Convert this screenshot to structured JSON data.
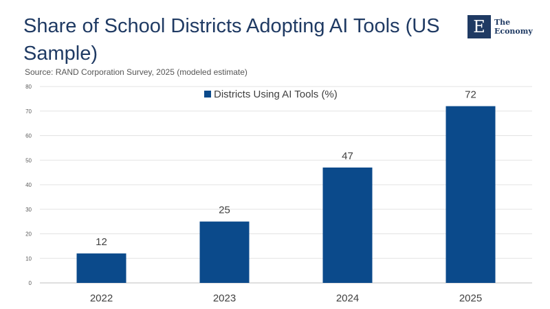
{
  "header": {
    "title": "Share of School Districts Adopting AI Tools (US Sample)",
    "subtitle": "Source: RAND Corporation Survey, 2025 (modeled estimate)"
  },
  "logo": {
    "mark": "E",
    "line1": "The",
    "line2": "Economy",
    "color": "#1f3a63"
  },
  "chart_data": {
    "type": "bar",
    "categories": [
      "2022",
      "2023",
      "2024",
      "2025"
    ],
    "series": [
      {
        "name": "Districts Using AI Tools (%)",
        "values": [
          12,
          25,
          47,
          72
        ],
        "color": "#0b4a8b"
      }
    ],
    "ylim": [
      0,
      80
    ],
    "yticks": [
      0,
      10,
      20,
      30,
      40,
      50,
      60,
      70,
      80
    ],
    "grid": true,
    "legend": "top-center",
    "data_labels": true
  }
}
